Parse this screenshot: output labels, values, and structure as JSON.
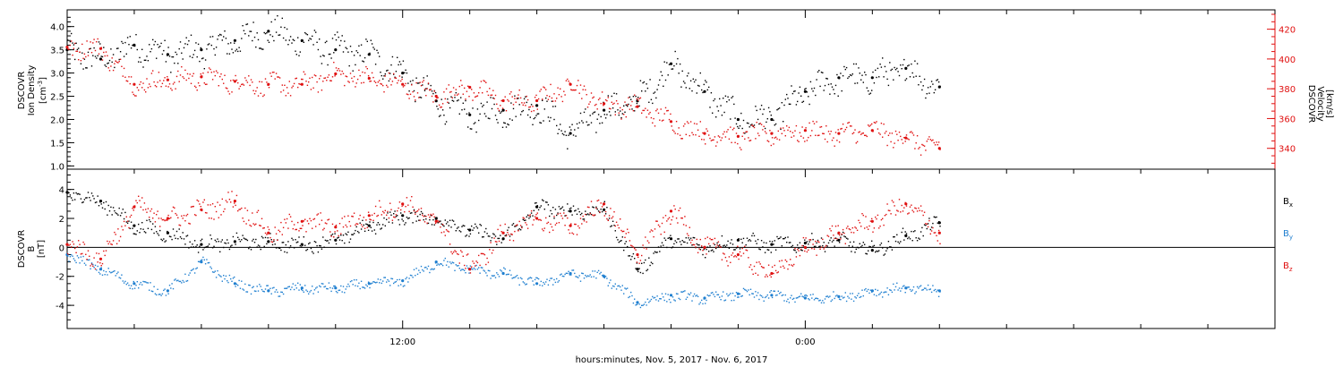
{
  "colors": {
    "black": "#000000",
    "red": "#e01010",
    "blue": "#1f7fd0",
    "axis": "#000000"
  },
  "xaxis": {
    "title": "hours:minutes, Nov.  5, 2017 - Nov.  6, 2017",
    "range_hours": [
      2,
      38
    ],
    "tick_labels": [
      {
        "label": "12:00",
        "hour": 12
      },
      {
        "label": "0:00",
        "hour": 24
      }
    ],
    "minor_tick_step_hours": 2
  },
  "top_panel": {
    "left_axis_label_lines": [
      "DSCOVR",
      "Ion Density"
    ],
    "left_axis_unit": "[cm",
    "left_axis_unit_exp": "-3",
    "left_axis_unit_end": "]",
    "right_axis_label_lines": [
      "DSCOVR",
      "Velocity",
      "[km/s]"
    ],
    "left_ticks": [
      "1.0",
      "1.5",
      "2.0",
      "2.5",
      "3.0",
      "3.5",
      "4.0"
    ],
    "right_ticks": [
      "340",
      "360",
      "380",
      "400",
      "420"
    ],
    "ylim_left": [
      0.93,
      4.36
    ],
    "ylim_right": [
      326,
      433
    ]
  },
  "bottom_panel": {
    "left_axis_label_lines": [
      "DSCOVR",
      "B",
      "[nT]"
    ],
    "ticks": [
      "-4",
      "-2",
      "0",
      "2",
      "4"
    ],
    "ylim": [
      -5.6,
      5.4
    ],
    "legend": [
      {
        "label": "B",
        "sub": "x",
        "color": "#000000"
      },
      {
        "label": "B",
        "sub": "y",
        "color": "#1f7fd0"
      },
      {
        "label": "B",
        "sub": "z",
        "color": "#e01010"
      }
    ]
  },
  "chart_data": [
    {
      "type": "scatter",
      "title": "",
      "xlabel": "hours:minutes, Nov.  5, 2017 - Nov.  6, 2017",
      "ylabel": "DSCOVR Ion Density [cm-3]",
      "ylabel_right": "DSCOVR Velocity [km/s]",
      "xlim_hours": [
        2,
        38
      ],
      "ylim": [
        0.93,
        4.36
      ],
      "ylim_right": [
        326,
        433
      ],
      "series": [
        {
          "name": "Ion Density",
          "axis": "left",
          "color": "#000000",
          "x_hours": [
            2.0,
            3.0,
            4.0,
            5.0,
            6.0,
            7.0,
            8.0,
            9.0,
            10.0,
            11.0,
            12.0,
            13.0,
            14.0,
            15.0,
            16.0,
            17.0,
            18.0,
            19.0,
            20.0,
            21.0,
            22.0,
            23.0,
            24.0,
            25.0,
            26.0,
            27.0,
            28.0
          ],
          "values": [
            3.5,
            3.3,
            3.6,
            3.4,
            3.5,
            3.7,
            3.9,
            3.7,
            3.5,
            3.4,
            3.0,
            2.4,
            2.1,
            2.2,
            2.3,
            1.7,
            2.2,
            2.4,
            3.2,
            2.6,
            2.0,
            2.0,
            2.6,
            2.9,
            2.9,
            3.1,
            2.7
          ]
        },
        {
          "name": "Velocity",
          "axis": "right",
          "color": "#e01010",
          "x_hours": [
            2.0,
            3.0,
            4.0,
            5.0,
            6.0,
            7.0,
            8.0,
            9.0,
            10.0,
            11.0,
            12.0,
            13.0,
            14.0,
            15.0,
            16.0,
            17.0,
            18.0,
            19.0,
            20.0,
            21.0,
            22.0,
            23.0,
            24.0,
            25.0,
            26.0,
            27.0,
            28.0
          ],
          "values": [
            408,
            407,
            383,
            386,
            388,
            385,
            383,
            383,
            390,
            387,
            383,
            375,
            381,
            372,
            372,
            383,
            370,
            368,
            358,
            350,
            348,
            350,
            352,
            350,
            352,
            347,
            340
          ]
        }
      ]
    },
    {
      "type": "scatter",
      "title": "",
      "xlabel": "hours:minutes, Nov.  5, 2017 - Nov.  6, 2017",
      "ylabel": "DSCOVR B [nT]",
      "xlim_hours": [
        2,
        38
      ],
      "ylim": [
        -5.6,
        5.4
      ],
      "series": [
        {
          "name": "Bx",
          "color": "#000000",
          "x_hours": [
            2.0,
            3.0,
            4.0,
            5.0,
            6.0,
            7.0,
            8.0,
            9.0,
            10.0,
            11.0,
            12.0,
            13.0,
            14.0,
            15.0,
            16.0,
            17.0,
            18.0,
            19.0,
            20.0,
            21.0,
            22.0,
            23.0,
            24.0,
            25.0,
            26.0,
            27.0,
            28.0
          ],
          "values": [
            3.8,
            3.2,
            1.5,
            1.0,
            0.2,
            0.4,
            0.4,
            0.2,
            0.5,
            1.5,
            2.2,
            2.0,
            1.2,
            0.6,
            2.8,
            2.5,
            2.6,
            -1.5,
            0.6,
            0.0,
            0.5,
            0.2,
            0.3,
            0.5,
            -0.2,
            0.8,
            1.7
          ]
        },
        {
          "name": "By",
          "color": "#1f7fd0",
          "x_hours": [
            2.0,
            3.0,
            4.0,
            5.0,
            6.0,
            7.0,
            8.0,
            9.0,
            10.0,
            11.0,
            12.0,
            13.0,
            14.0,
            15.0,
            16.0,
            17.0,
            18.0,
            19.0,
            20.0,
            21.0,
            22.0,
            23.0,
            24.0,
            25.0,
            26.0,
            27.0,
            28.0
          ],
          "values": [
            -0.5,
            -1.5,
            -2.5,
            -3.0,
            -1.0,
            -2.5,
            -3.0,
            -2.8,
            -2.8,
            -2.5,
            -2.3,
            -1.0,
            -1.5,
            -1.8,
            -2.5,
            -1.8,
            -2.0,
            -3.8,
            -3.3,
            -3.5,
            -3.2,
            -3.3,
            -3.5,
            -3.4,
            -3.0,
            -2.8,
            -3.0
          ]
        },
        {
          "name": "Bz",
          "color": "#e01010",
          "x_hours": [
            2.0,
            3.0,
            4.0,
            5.0,
            6.0,
            7.0,
            8.0,
            9.0,
            10.0,
            11.0,
            12.0,
            13.0,
            14.0,
            15.0,
            16.0,
            17.0,
            18.0,
            19.0,
            20.0,
            21.0,
            22.0,
            23.0,
            24.0,
            25.0,
            26.0,
            27.0,
            28.0
          ],
          "values": [
            0.2,
            -0.8,
            2.8,
            2.0,
            2.6,
            3.2,
            1.0,
            1.8,
            1.4,
            2.2,
            3.0,
            1.8,
            -1.5,
            1.0,
            2.0,
            1.5,
            3.0,
            -0.5,
            2.5,
            0.0,
            -0.5,
            -1.8,
            0.0,
            1.0,
            1.8,
            3.0,
            1.0
          ]
        }
      ]
    }
  ]
}
